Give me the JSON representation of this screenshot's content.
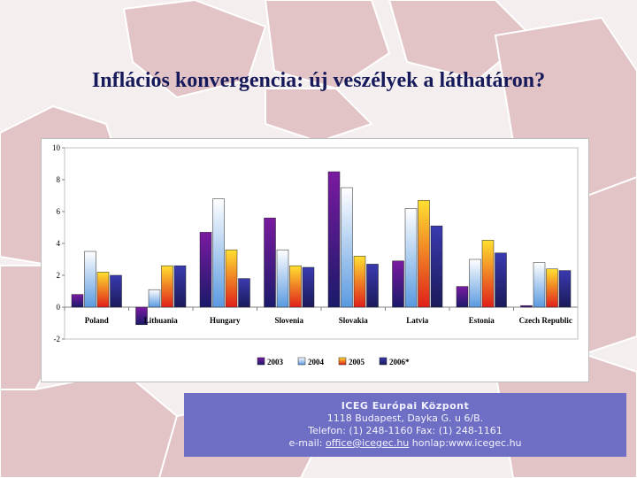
{
  "title": "Inflációs konvergencia: új veszélyek a láthatáron?",
  "chart_data": {
    "type": "bar",
    "title": "",
    "xlabel": "",
    "ylabel": "",
    "ylim": [
      -2,
      10
    ],
    "yticks": [
      -2,
      0,
      2,
      4,
      6,
      8,
      10
    ],
    "grid": false,
    "legend_position": "bottom-right",
    "categories": [
      "Poland",
      "Lithuania",
      "Hungary",
      "Slovenia",
      "Slovakia",
      "Latvia",
      "Estonia",
      "Czech Republic"
    ],
    "series": [
      {
        "name": "2003",
        "color": "#5a1a8c",
        "values": [
          0.8,
          -1.1,
          4.7,
          5.6,
          8.5,
          2.9,
          1.3,
          0.1
        ]
      },
      {
        "name": "2004",
        "color": "#9cc8f0",
        "values": [
          3.5,
          1.1,
          6.8,
          3.6,
          7.5,
          6.2,
          3.0,
          2.8
        ]
      },
      {
        "name": "2005",
        "color": "#f5a020",
        "values": [
          2.2,
          2.6,
          3.6,
          2.6,
          3.2,
          6.7,
          4.2,
          2.4
        ]
      },
      {
        "name": "2006*",
        "color": "#2a2a8a",
        "values": [
          2.0,
          2.6,
          1.8,
          2.5,
          2.7,
          5.1,
          3.4,
          2.3
        ]
      }
    ]
  },
  "footer": {
    "org": "ICEG Európai Központ",
    "address": "1118 Budapest, Dayka G. u 6/B.",
    "phone": "Telefon: (1) 248-1160 Fax: (1) 248-1161",
    "email_label": "e-mail: ",
    "email": "office@icegec.hu",
    "web": " honlap:www.icegec.hu"
  }
}
